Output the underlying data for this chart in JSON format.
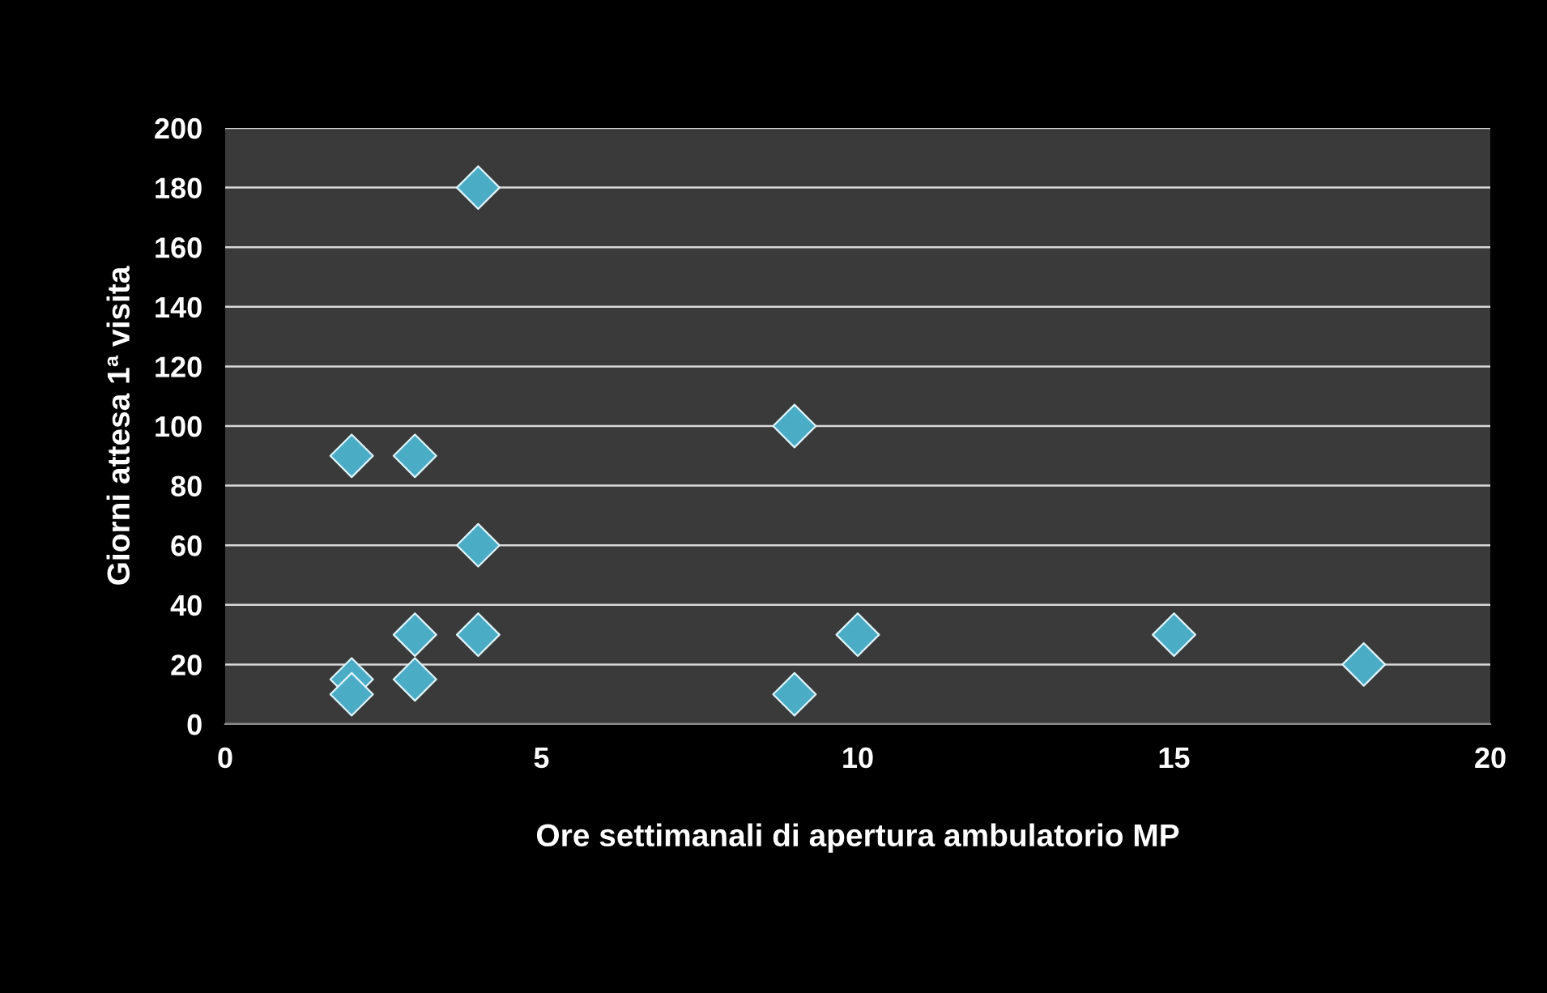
{
  "chart_data": {
    "type": "scatter",
    "xlabel": "Ore settimanali di apertura ambulatorio MP",
    "ylabel": "Giorni attesa 1ª visita",
    "x": [
      2,
      2,
      2,
      3,
      3,
      3,
      4,
      4,
      4,
      9,
      9,
      10,
      15,
      18
    ],
    "series": [
      {
        "color": "#4bacc6",
        "values": [
          90,
          15,
          10,
          90,
          30,
          15,
          180,
          60,
          30,
          100,
          10,
          30,
          30,
          20
        ]
      }
    ],
    "xlim": [
      0,
      20
    ],
    "xticks": [
      0,
      5,
      10,
      15,
      20
    ],
    "ylim": [
      0,
      200
    ],
    "yticks": [
      0,
      20,
      40,
      60,
      80,
      100,
      120,
      140,
      160,
      180,
      200
    ],
    "grid": "y",
    "marker": "diamond"
  }
}
